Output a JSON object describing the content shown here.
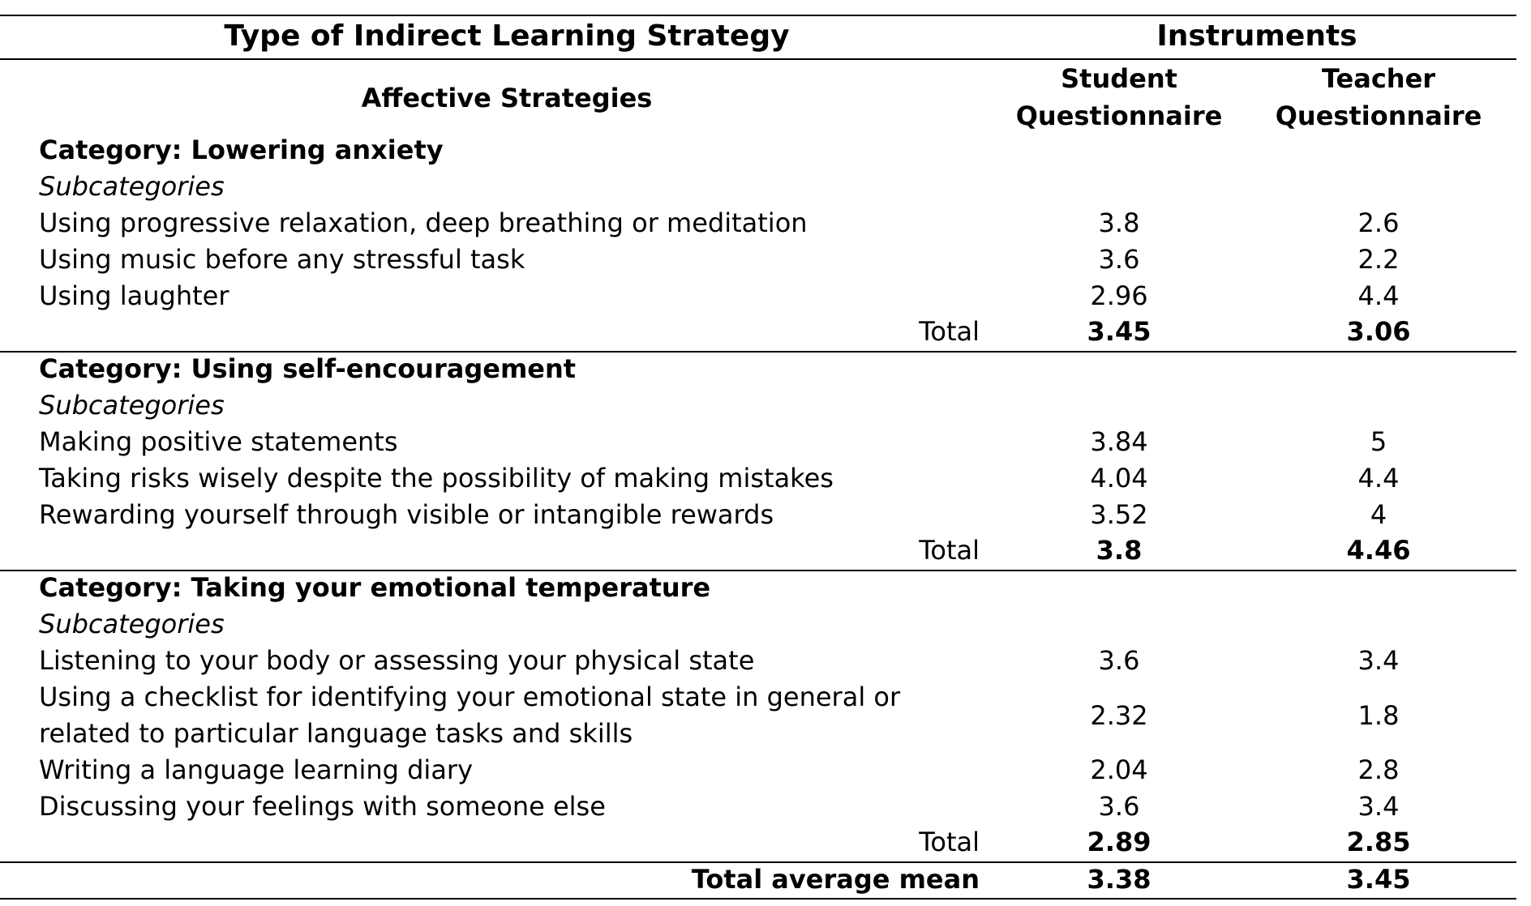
{
  "header": {
    "type_title": "Type of Indirect Learning Strategy",
    "instruments": "Instruments",
    "affective": "Affective Strategies",
    "student_line1": "Student",
    "student_line2": "Questionnaire",
    "teacher_line1": "Teacher",
    "teacher_line2": "Questionnaire"
  },
  "labels": {
    "subcategories": "Subcategories",
    "total": "Total",
    "total_average": "Total average mean"
  },
  "groups": [
    {
      "category": "Category: Lowering anxiety",
      "rows": [
        {
          "label": "Using progressive relaxation, deep breathing or meditation",
          "student": "3.8",
          "teacher": "2.6"
        },
        {
          "label": "Using music before any stressful task",
          "student": "3.6",
          "teacher": "2.2"
        },
        {
          "label": "Using laughter",
          "student": "2.96",
          "teacher": "4.4"
        }
      ],
      "total_student": "3.45",
      "total_teacher": "3.06"
    },
    {
      "category": "Category: Using self-encouragement",
      "rows": [
        {
          "label": "Making positive statements",
          "student": "3.84",
          "teacher": "5"
        },
        {
          "label": "Taking risks wisely despite the possibility of making mistakes",
          "student": "4.04",
          "teacher": "4.4"
        },
        {
          "label": "Rewarding yourself through visible or intangible rewards",
          "student": "3.52",
          "teacher": "4"
        }
      ],
      "total_student": "3.8",
      "total_teacher": "4.46"
    },
    {
      "category": "Category: Taking your emotional temperature",
      "rows": [
        {
          "label": "Listening to your body or assessing your physical state",
          "student": "3.6",
          "teacher": "3.4"
        },
        {
          "label": "Using a checklist for identifying your emotional state in general or",
          "label2": "related to particular language tasks and skills",
          "student": "2.32",
          "teacher": "1.8"
        },
        {
          "label": "Writing a language learning diary",
          "student": "2.04",
          "teacher": "2.8"
        },
        {
          "label": "Discussing your feelings with someone else",
          "student": "3.6",
          "teacher": "3.4"
        }
      ],
      "total_student": "2.89",
      "total_teacher": "2.85"
    }
  ],
  "overall": {
    "student": "3.38",
    "teacher": "3.45"
  }
}
